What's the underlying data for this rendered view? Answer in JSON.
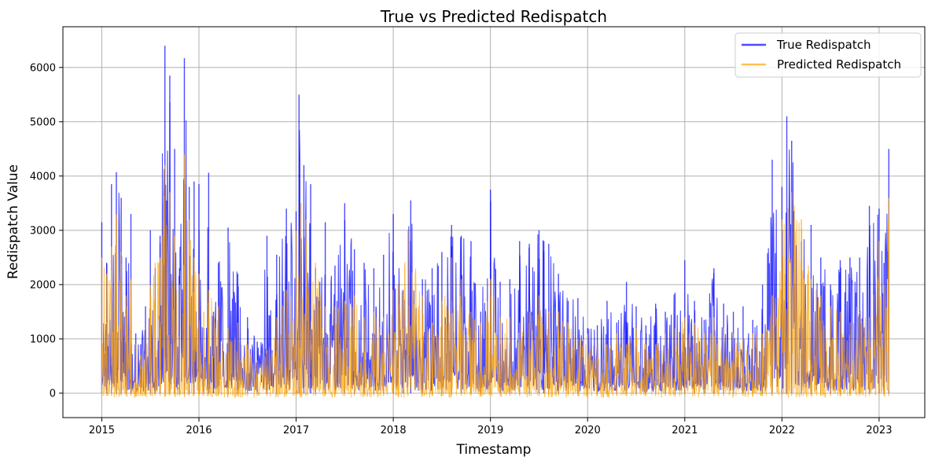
{
  "chart_data": {
    "type": "line",
    "title": "True vs Predicted Redispatch",
    "xlabel": "Timestamp",
    "ylabel": "Redispatch Value",
    "xlim": [
      2014.6,
      2023.47
    ],
    "ylim": [
      -450,
      6750
    ],
    "x_ticks": [
      2015,
      2016,
      2017,
      2018,
      2019,
      2020,
      2021,
      2022,
      2023
    ],
    "x_tick_labels": [
      "2015",
      "2016",
      "2017",
      "2018",
      "2019",
      "2020",
      "2021",
      "2022",
      "2023"
    ],
    "y_ticks": [
      0,
      1000,
      2000,
      3000,
      4000,
      5000,
      6000
    ],
    "y_tick_labels": [
      "0",
      "1000",
      "2000",
      "3000",
      "4000",
      "5000",
      "6000"
    ],
    "grid": true,
    "legend_position": "top-right",
    "series": [
      {
        "name": "True Redispatch",
        "color": "#0000ff",
        "opacity": 0.7,
        "x": [
          2015.0,
          2015.05,
          2015.1,
          2015.15,
          2015.2,
          2015.25,
          2015.3,
          2015.35,
          2015.4,
          2015.45,
          2015.5,
          2015.55,
          2015.6,
          2015.65,
          2015.7,
          2015.75,
          2015.8,
          2015.85,
          2015.9,
          2015.95,
          2016.0,
          2016.05,
          2016.1,
          2016.15,
          2016.2,
          2016.3,
          2016.4,
          2016.5,
          2016.6,
          2016.7,
          2016.8,
          2016.9,
          2017.0,
          2017.03,
          2017.08,
          2017.15,
          2017.2,
          2017.3,
          2017.4,
          2017.5,
          2017.6,
          2017.7,
          2017.8,
          2017.9,
          2018.0,
          2018.1,
          2018.18,
          2018.3,
          2018.4,
          2018.5,
          2018.6,
          2018.7,
          2018.8,
          2018.9,
          2019.0,
          2019.1,
          2019.2,
          2019.3,
          2019.4,
          2019.5,
          2019.55,
          2019.6,
          2019.7,
          2019.8,
          2019.9,
          2020.0,
          2020.1,
          2020.2,
          2020.3,
          2020.4,
          2020.5,
          2020.6,
          2020.7,
          2020.8,
          2020.9,
          2021.0,
          2021.1,
          2021.2,
          2021.3,
          2021.4,
          2021.5,
          2021.6,
          2021.7,
          2021.8,
          2021.9,
          2022.0,
          2022.05,
          2022.1,
          2022.2,
          2022.3,
          2022.4,
          2022.5,
          2022.6,
          2022.7,
          2022.8,
          2022.9,
          2023.0,
          2023.05,
          2023.1
        ],
        "values": [
          3150,
          2400,
          3850,
          4070,
          3600,
          2500,
          3300,
          1100,
          900,
          1600,
          3000,
          2300,
          2900,
          6400,
          5850,
          4500,
          2300,
          6170,
          3800,
          3900,
          3850,
          1200,
          4060,
          1500,
          2400,
          3050,
          2200,
          1400,
          950,
          2900,
          2550,
          3400,
          3350,
          5500,
          4200,
          3850,
          2300,
          3150,
          2350,
          3500,
          2650,
          2400,
          2300,
          2550,
          3300,
          1900,
          3550,
          2100,
          2300,
          2600,
          3100,
          2900,
          2800,
          1500,
          3750,
          2050,
          2100,
          2800,
          2750,
          3000,
          2800,
          2750,
          2200,
          1700,
          1750,
          1200,
          1250,
          1700,
          1300,
          2050,
          1600,
          1250,
          1650,
          1500,
          1850,
          2450,
          1700,
          1350,
          2300,
          1650,
          1500,
          1600,
          1350,
          2000,
          4300,
          3800,
          5100,
          4650,
          2800,
          3100,
          2500,
          2000,
          2450,
          2500,
          2500,
          3450,
          3400,
          2400,
          4500
        ]
      },
      {
        "name": "Predicted Redispatch",
        "color": "#ffa500",
        "opacity": 0.7,
        "x": [
          2015.0,
          2015.05,
          2015.1,
          2015.15,
          2015.2,
          2015.25,
          2015.3,
          2015.35,
          2015.4,
          2015.45,
          2015.5,
          2015.55,
          2015.6,
          2015.65,
          2015.7,
          2015.75,
          2015.8,
          2015.85,
          2015.9,
          2015.95,
          2016.0,
          2016.05,
          2016.1,
          2016.2,
          2016.3,
          2016.4,
          2016.5,
          2016.6,
          2016.7,
          2016.8,
          2016.9,
          2017.0,
          2017.05,
          2017.1,
          2017.2,
          2017.3,
          2017.4,
          2017.5,
          2017.6,
          2017.7,
          2017.8,
          2017.9,
          2018.0,
          2018.05,
          2018.15,
          2018.3,
          2018.4,
          2018.5,
          2018.6,
          2018.7,
          2018.8,
          2018.9,
          2019.0,
          2019.1,
          2019.2,
          2019.3,
          2019.4,
          2019.5,
          2019.6,
          2019.7,
          2019.8,
          2019.9,
          2020.0,
          2020.1,
          2020.2,
          2020.3,
          2020.4,
          2020.5,
          2020.6,
          2020.7,
          2020.8,
          2020.9,
          2021.0,
          2021.1,
          2021.2,
          2021.3,
          2021.4,
          2021.5,
          2021.6,
          2021.7,
          2021.8,
          2021.9,
          2022.0,
          2022.1,
          2022.2,
          2022.3,
          2022.4,
          2022.5,
          2022.6,
          2022.7,
          2022.8,
          2022.9,
          2023.0,
          2023.05,
          2023.1
        ],
        "values": [
          2500,
          2200,
          2700,
          3300,
          2600,
          1800,
          2100,
          900,
          700,
          1200,
          2000,
          2400,
          2500,
          4200,
          3700,
          2900,
          2000,
          4400,
          3200,
          2500,
          2200,
          1500,
          1900,
          1600,
          1200,
          1300,
          900,
          600,
          800,
          1400,
          1900,
          3000,
          3500,
          3200,
          2400,
          1600,
          1600,
          1700,
          1800,
          1400,
          1500,
          1400,
          1900,
          2000,
          3000,
          1800,
          1300,
          1700,
          2500,
          2100,
          1500,
          1300,
          2100,
          1400,
          1400,
          1300,
          1500,
          1800,
          1500,
          1500,
          1300,
          1000,
          1100,
          900,
          900,
          1100,
          900,
          1200,
          900,
          900,
          1100,
          1200,
          1400,
          1300,
          1100,
          1400,
          1200,
          1100,
          1000,
          1100,
          1100,
          1800,
          3200,
          3700,
          3200,
          2100,
          1800,
          1600,
          1500,
          1300,
          1500,
          1400,
          2800,
          2000,
          3600
        ]
      }
    ]
  }
}
